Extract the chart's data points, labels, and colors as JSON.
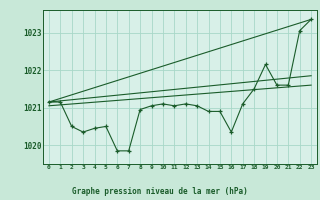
{
  "title": "Graphe pression niveau de la mer (hPa)",
  "background_color": "#c8e8d8",
  "plot_bg_color": "#d8f0e8",
  "grid_color": "#a8d8c8",
  "line_color": "#1a5c2a",
  "marker_color": "#1a5c2a",
  "xlim": [
    -0.5,
    23.5
  ],
  "ylim": [
    1019.5,
    1023.6
  ],
  "yticks": [
    1020,
    1021,
    1022,
    1023
  ],
  "xtick_labels": [
    "0",
    "1",
    "2",
    "3",
    "4",
    "5",
    "6",
    "7",
    "8",
    "9",
    "10",
    "11",
    "12",
    "13",
    "14",
    "15",
    "16",
    "17",
    "18",
    "19",
    "20",
    "21",
    "22",
    "23"
  ],
  "series1_x": [
    0,
    1,
    2,
    3,
    4,
    5,
    6,
    7,
    8,
    9,
    10,
    11,
    12,
    13,
    14,
    15,
    16,
    17,
    18,
    19,
    20,
    21,
    22,
    23
  ],
  "series1_y": [
    1021.15,
    1021.15,
    1020.5,
    1020.35,
    1020.45,
    1020.5,
    1019.85,
    1019.85,
    1020.95,
    1021.05,
    1021.1,
    1021.05,
    1021.1,
    1021.05,
    1020.9,
    1020.9,
    1020.35,
    1021.1,
    1021.5,
    1022.15,
    1021.6,
    1021.6,
    1023.05,
    1023.35
  ],
  "series2_x": [
    0,
    23
  ],
  "series2_y": [
    1021.15,
    1023.35
  ],
  "series3_x": [
    0,
    23
  ],
  "series3_y": [
    1021.15,
    1021.85
  ],
  "series4_x": [
    0,
    23
  ],
  "series4_y": [
    1021.05,
    1021.6
  ]
}
